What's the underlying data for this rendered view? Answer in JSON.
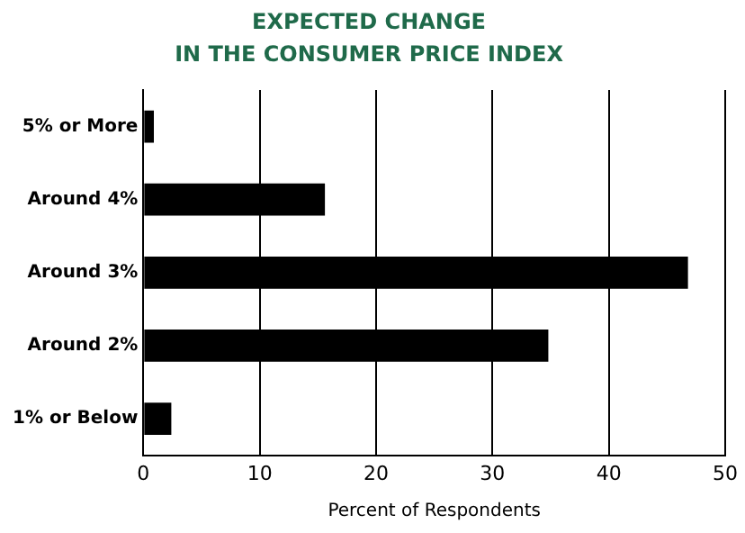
{
  "chart_data": {
    "type": "bar",
    "orientation": "horizontal",
    "title": "EXPECTED CHANGE\nIN THE CONSUMER PRICE INDEX",
    "categories": [
      "5% or More",
      "Around 4%",
      "Around 3%",
      "Around 2%",
      "1% or Below"
    ],
    "values": [
      0.9,
      15.6,
      46.8,
      34.8,
      2.4
    ],
    "color": "#000000",
    "xlabel": "Percent of Respondents",
    "xlim": [
      0,
      50
    ],
    "xticks": [
      0,
      10,
      20,
      30,
      40,
      50
    ],
    "grid": "x",
    "legend": false
  }
}
